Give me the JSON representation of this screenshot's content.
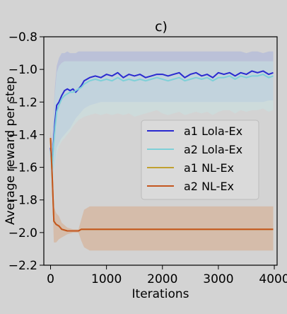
{
  "chart_data": {
    "type": "line",
    "title": "c)",
    "xlabel": "Iterations",
    "ylabel": "Average reward per step",
    "xlim": [
      -120,
      4050
    ],
    "ylim": [
      -2.2,
      -0.8
    ],
    "xticks": [
      0,
      1000,
      2000,
      3000,
      4000
    ],
    "yticks": [
      -2.2,
      -2.0,
      -1.8,
      -1.6,
      -1.4,
      -1.2,
      -1.0,
      -0.8
    ],
    "xtick_labels": [
      "0",
      "1000",
      "2000",
      "3000",
      "4000"
    ],
    "ytick_labels": [
      "−2.2",
      "−2.0",
      "−1.8",
      "−1.6",
      "−1.4",
      "−1.2",
      "−1.0",
      "−0.8"
    ],
    "grid": false,
    "legend_position": "center-right",
    "series": [
      {
        "name": "a1 Lola-Ex",
        "color": "#2a2ad0",
        "x": [
          0,
          25,
          50,
          80,
          110,
          150,
          200,
          250,
          300,
          350,
          400,
          450,
          500,
          550,
          600,
          700,
          800,
          900,
          1000,
          1100,
          1200,
          1300,
          1400,
          1500,
          1600,
          1700,
          1800,
          1900,
          2000,
          2100,
          2200,
          2300,
          2400,
          2500,
          2600,
          2700,
          2800,
          2900,
          3000,
          3100,
          3200,
          3300,
          3400,
          3500,
          3600,
          3700,
          3800,
          3900,
          3980
        ],
        "y": [
          -1.48,
          -1.6,
          -1.46,
          -1.32,
          -1.22,
          -1.2,
          -1.16,
          -1.13,
          -1.12,
          -1.13,
          -1.12,
          -1.14,
          -1.12,
          -1.1,
          -1.07,
          -1.05,
          -1.04,
          -1.05,
          -1.03,
          -1.04,
          -1.02,
          -1.05,
          -1.03,
          -1.04,
          -1.03,
          -1.05,
          -1.04,
          -1.03,
          -1.03,
          -1.04,
          -1.03,
          -1.02,
          -1.05,
          -1.03,
          -1.02,
          -1.04,
          -1.03,
          -1.05,
          -1.02,
          -1.03,
          -1.02,
          -1.04,
          -1.02,
          -1.03,
          -1.01,
          -1.02,
          -1.01,
          -1.03,
          -1.02
        ],
        "band_lower": [
          -1.6,
          -1.74,
          -1.64,
          -1.58,
          -1.48,
          -1.45,
          -1.42,
          -1.4,
          -1.38,
          -1.36,
          -1.33,
          -1.3,
          -1.28,
          -1.26,
          -1.24,
          -1.22,
          -1.21,
          -1.2,
          -1.2,
          -1.2,
          -1.2,
          -1.2,
          -1.2,
          -1.2,
          -1.2,
          -1.2,
          -1.2,
          -1.2,
          -1.2,
          -1.2,
          -1.2,
          -1.2,
          -1.2,
          -1.2,
          -1.2,
          -1.2,
          -1.2,
          -1.2,
          -1.2,
          -1.2,
          -1.2,
          -1.2,
          -1.2,
          -1.2,
          -1.2,
          -1.2,
          -1.2,
          -1.19,
          -1.19
        ],
        "band_upper": [
          -1.38,
          -1.46,
          -1.28,
          -1.1,
          -0.98,
          -0.93,
          -0.9,
          -0.9,
          -0.89,
          -0.9,
          -0.9,
          -0.9,
          -0.89,
          -0.89,
          -0.89,
          -0.89,
          -0.89,
          -0.89,
          -0.89,
          -0.89,
          -0.89,
          -0.89,
          -0.89,
          -0.89,
          -0.89,
          -0.89,
          -0.89,
          -0.89,
          -0.89,
          -0.89,
          -0.89,
          -0.89,
          -0.89,
          -0.89,
          -0.89,
          -0.89,
          -0.89,
          -0.89,
          -0.89,
          -0.89,
          -0.89,
          -0.89,
          -0.89,
          -0.9,
          -0.89,
          -0.89,
          -0.9,
          -0.89,
          -0.89
        ],
        "band_color": "#a7b3dc"
      },
      {
        "name": "a2 Lola-Ex",
        "color": "#7fd0d8",
        "x": [
          0,
          25,
          50,
          80,
          110,
          150,
          200,
          250,
          300,
          350,
          400,
          450,
          500,
          550,
          600,
          700,
          800,
          900,
          1000,
          1100,
          1200,
          1300,
          1400,
          1500,
          1600,
          1700,
          1800,
          1900,
          2000,
          2100,
          2200,
          2300,
          2400,
          2500,
          2600,
          2700,
          2800,
          2900,
          3000,
          3100,
          3200,
          3300,
          3400,
          3500,
          3600,
          3700,
          3800,
          3900,
          3980
        ],
        "y": [
          -1.5,
          -1.62,
          -1.48,
          -1.36,
          -1.26,
          -1.22,
          -1.18,
          -1.16,
          -1.15,
          -1.14,
          -1.14,
          -1.13,
          -1.12,
          -1.11,
          -1.09,
          -1.07,
          -1.06,
          -1.07,
          -1.06,
          -1.07,
          -1.05,
          -1.07,
          -1.06,
          -1.07,
          -1.06,
          -1.07,
          -1.06,
          -1.05,
          -1.06,
          -1.07,
          -1.06,
          -1.05,
          -1.07,
          -1.06,
          -1.05,
          -1.06,
          -1.05,
          -1.07,
          -1.05,
          -1.05,
          -1.04,
          -1.06,
          -1.04,
          -1.05,
          -1.04,
          -1.04,
          -1.03,
          -1.05,
          -1.04
        ],
        "band_lower": [
          -1.62,
          -1.76,
          -1.66,
          -1.6,
          -1.52,
          -1.47,
          -1.44,
          -1.42,
          -1.4,
          -1.38,
          -1.35,
          -1.33,
          -1.31,
          -1.3,
          -1.29,
          -1.28,
          -1.27,
          -1.28,
          -1.27,
          -1.28,
          -1.27,
          -1.28,
          -1.27,
          -1.29,
          -1.28,
          -1.27,
          -1.26,
          -1.25,
          -1.27,
          -1.28,
          -1.27,
          -1.26,
          -1.28,
          -1.27,
          -1.26,
          -1.27,
          -1.26,
          -1.28,
          -1.26,
          -1.25,
          -1.25,
          -1.27,
          -1.25,
          -1.26,
          -1.25,
          -1.25,
          -1.24,
          -1.26,
          -1.25
        ],
        "band_upper": [
          -1.4,
          -1.48,
          -1.3,
          -1.14,
          -1.02,
          -0.98,
          -0.96,
          -0.95,
          -0.95,
          -0.95,
          -0.95,
          -0.95,
          -0.95,
          -0.95,
          -0.95,
          -0.95,
          -0.95,
          -0.95,
          -0.95,
          -0.95,
          -0.95,
          -0.95,
          -0.95,
          -0.95,
          -0.95,
          -0.95,
          -0.95,
          -0.95,
          -0.95,
          -0.95,
          -0.95,
          -0.95,
          -0.95,
          -0.95,
          -0.95,
          -0.95,
          -0.95,
          -0.95,
          -0.95,
          -0.95,
          -0.95,
          -0.95,
          -0.95,
          -0.95,
          -0.95,
          -0.95,
          -0.95,
          -0.95,
          -0.95
        ],
        "band_color": "#c9e2e2"
      },
      {
        "name": "a1 NL-Ex",
        "color": "#c0a030",
        "x": [
          0,
          30,
          60,
          100,
          150,
          200,
          300,
          400,
          500,
          550,
          600,
          700,
          1000,
          1500,
          2000,
          2500,
          3000,
          3500,
          3980
        ],
        "y": [
          -1.42,
          -1.66,
          -1.93,
          -1.95,
          -1.96,
          -1.98,
          -1.99,
          -1.99,
          -1.99,
          -1.98,
          -1.98,
          -1.98,
          -1.98,
          -1.98,
          -1.98,
          -1.98,
          -1.98,
          -1.98,
          -1.98
        ],
        "band_lower": [
          -1.5,
          -1.74,
          -2.06,
          -2.06,
          -2.04,
          -2.03,
          -2.01,
          -2.0,
          -2.0,
          -2.05,
          -2.09,
          -2.11,
          -2.11,
          -2.11,
          -2.11,
          -2.11,
          -2.11,
          -2.11,
          -2.11
        ],
        "band_upper": [
          -1.36,
          -1.6,
          -1.84,
          -1.88,
          -1.9,
          -1.94,
          -1.97,
          -1.98,
          -1.98,
          -1.92,
          -1.86,
          -1.84,
          -1.84,
          -1.84,
          -1.84,
          -1.84,
          -1.84,
          -1.84,
          -1.84
        ],
        "band_color": "#d6b7a0"
      },
      {
        "name": "a2 NL-Ex",
        "color": "#c4561f",
        "x": [
          0,
          30,
          60,
          100,
          150,
          200,
          300,
          400,
          500,
          550,
          600,
          700,
          1000,
          1500,
          2000,
          2500,
          3000,
          3500,
          3980
        ],
        "y": [
          -1.42,
          -1.66,
          -1.93,
          -1.95,
          -1.96,
          -1.98,
          -1.99,
          -1.99,
          -1.99,
          -1.98,
          -1.98,
          -1.98,
          -1.98,
          -1.98,
          -1.98,
          -1.98,
          -1.98,
          -1.98,
          -1.98
        ],
        "band_lower": [
          -1.5,
          -1.74,
          -2.06,
          -2.06,
          -2.04,
          -2.03,
          -2.01,
          -2.0,
          -2.0,
          -2.05,
          -2.09,
          -2.11,
          -2.11,
          -2.11,
          -2.11,
          -2.11,
          -2.11,
          -2.11,
          -2.11
        ],
        "band_upper": [
          -1.36,
          -1.6,
          -1.84,
          -1.88,
          -1.9,
          -1.94,
          -1.97,
          -1.98,
          -1.98,
          -1.92,
          -1.86,
          -1.84,
          -1.84,
          -1.84,
          -1.84,
          -1.84,
          -1.84,
          -1.84,
          -1.84
        ],
        "band_color": "#d6b7a0"
      }
    ]
  }
}
